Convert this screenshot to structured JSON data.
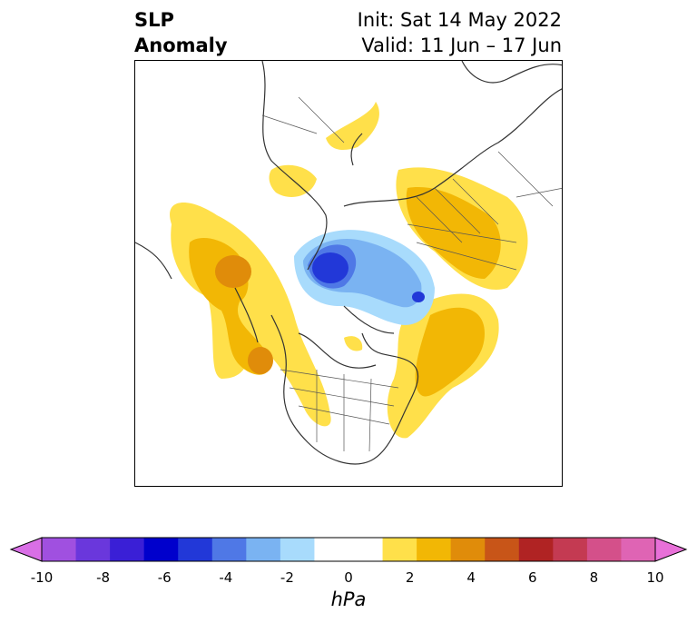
{
  "header": {
    "title_line1": "SLP",
    "title_line2": "Anomaly",
    "init_text": "Init: Sat 14 May 2022",
    "valid_text": "Valid: 11 Jun – 17 Jun"
  },
  "map": {
    "projection": "north-polar-stereographic",
    "features": [
      "coastlines",
      "country-borders",
      "us-state-borders",
      "canada-province-borders"
    ]
  },
  "colorbar": {
    "colors": [
      "#d96fe6",
      "#a050e0",
      "#6a37dc",
      "#3a1fd6",
      "#0000cc",
      "#2238d8",
      "#4f78e6",
      "#7ab3f2",
      "#a8dbfc",
      "#ffffff",
      "#ffffff",
      "#ffe04a",
      "#f2b705",
      "#e08c0a",
      "#c85518",
      "#b02323",
      "#c43a52",
      "#d4508a",
      "#df64b4",
      "#e870d8"
    ],
    "tick_labels": [
      "-10",
      "-8",
      "-6",
      "-4",
      "-2",
      "0",
      "2",
      "4",
      "6",
      "8",
      "10"
    ],
    "units": "hPa"
  }
}
